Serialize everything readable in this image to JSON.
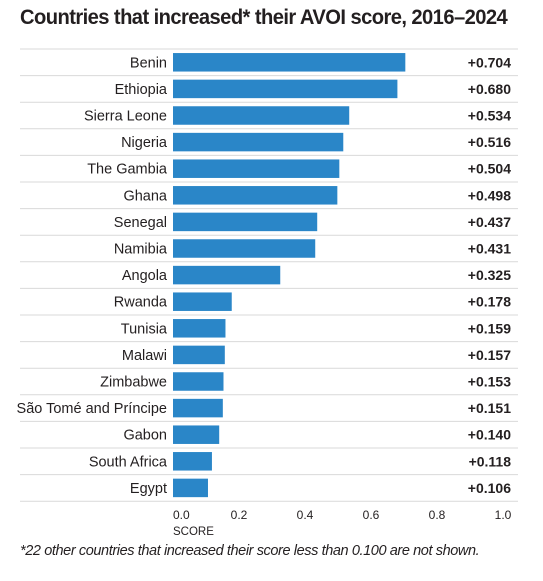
{
  "title": "Countries that increased* their AVOI score, 2016–2024",
  "footnote": "*22 other countries that increased their score less than 0.100 are not shown.",
  "colors": {
    "bar": "#2a86c8",
    "grid": "#d9d9d9",
    "text": "#231f20"
  },
  "chart_data": {
    "type": "bar",
    "orientation": "horizontal",
    "categories": [
      "Benin",
      "Ethiopia",
      "Sierra Leone",
      "Nigeria",
      "The Gambia",
      "Ghana",
      "Senegal",
      "Namibia",
      "Angola",
      "Rwanda",
      "Tunisia",
      "Malawi",
      "Zimbabwe",
      "São Tomé and Príncipe",
      "Gabon",
      "South Africa",
      "Egypt"
    ],
    "values": [
      0.704,
      0.68,
      0.534,
      0.516,
      0.504,
      0.498,
      0.437,
      0.431,
      0.325,
      0.178,
      0.159,
      0.157,
      0.153,
      0.151,
      0.14,
      0.118,
      0.106
    ],
    "value_labels": [
      "+0.704",
      "+0.680",
      "+0.534",
      "+0.516",
      "+0.504",
      "+0.498",
      "+0.437",
      "+0.431",
      "+0.325",
      "+0.178",
      "+0.159",
      "+0.157",
      "+0.153",
      "+0.151",
      "+0.140",
      "+0.118",
      "+0.106"
    ],
    "xlim": [
      0,
      1.0
    ],
    "x_ticks": [
      0.0,
      0.2,
      0.4,
      0.6,
      0.8,
      1.0
    ],
    "x_tick_labels": [
      "0.0",
      "0.2",
      "0.4",
      "0.6",
      "0.8",
      "1.0"
    ],
    "xlabel": "SCORE",
    "grid": "horizontal separators"
  }
}
